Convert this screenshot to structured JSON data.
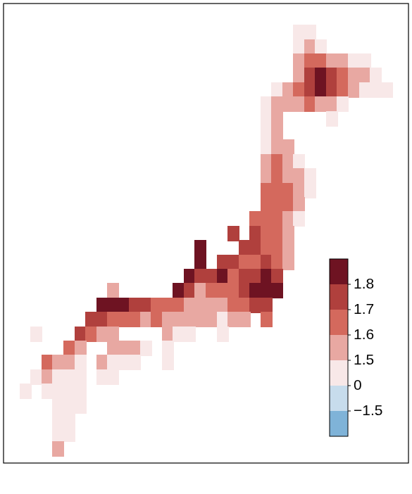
{
  "chart_data": {
    "type": "heatmap",
    "xlim": [
      128,
      146.5
    ],
    "ylim": [
      30,
      46
    ],
    "tick_labels": false,
    "grid": false,
    "cells": [
      [
        141.5,
        45.0,
        1.4
      ],
      [
        142.0,
        45.0,
        1.4
      ],
      [
        141.5,
        44.5,
        1.45
      ],
      [
        142.0,
        44.5,
        1.55
      ],
      [
        142.5,
        44.5,
        1.45
      ],
      [
        141.5,
        44.0,
        1.5
      ],
      [
        142.0,
        44.0,
        1.6
      ],
      [
        142.5,
        44.0,
        1.6
      ],
      [
        143.0,
        44.0,
        1.55
      ],
      [
        143.5,
        44.0,
        1.5
      ],
      [
        144.0,
        44.0,
        1.45
      ],
      [
        144.5,
        44.0,
        1.4
      ],
      [
        141.5,
        43.5,
        1.55
      ],
      [
        142.0,
        43.5,
        1.7
      ],
      [
        142.5,
        43.5,
        1.85
      ],
      [
        143.0,
        43.5,
        1.75
      ],
      [
        143.5,
        43.5,
        1.65
      ],
      [
        144.0,
        43.5,
        1.55
      ],
      [
        144.5,
        43.5,
        1.5
      ],
      [
        145.0,
        43.5,
        1.4
      ],
      [
        140.5,
        43.0,
        1.45
      ],
      [
        141.0,
        43.0,
        1.55
      ],
      [
        141.5,
        43.0,
        1.6
      ],
      [
        142.0,
        43.0,
        1.75
      ],
      [
        142.5,
        43.0,
        1.8
      ],
      [
        143.0,
        43.0,
        1.7
      ],
      [
        143.5,
        43.0,
        1.6
      ],
      [
        144.0,
        43.0,
        1.5
      ],
      [
        144.5,
        43.0,
        1.45
      ],
      [
        145.0,
        43.0,
        1.4
      ],
      [
        145.5,
        43.0,
        1.4
      ],
      [
        140.0,
        42.5,
        1.45
      ],
      [
        140.5,
        42.5,
        1.5
      ],
      [
        141.0,
        42.5,
        1.55
      ],
      [
        141.5,
        42.5,
        1.5
      ],
      [
        142.0,
        42.5,
        1.6
      ],
      [
        142.5,
        42.5,
        1.55
      ],
      [
        143.0,
        42.5,
        1.5
      ],
      [
        143.5,
        42.5,
        1.45
      ],
      [
        140.0,
        42.0,
        1.45
      ],
      [
        140.5,
        42.0,
        1.5
      ],
      [
        143.0,
        42.0,
        1.4
      ],
      [
        140.0,
        41.5,
        1.45
      ],
      [
        140.5,
        41.5,
        1.5
      ],
      [
        140.0,
        41.0,
        1.45
      ],
      [
        140.5,
        41.0,
        1.55
      ],
      [
        141.0,
        41.0,
        1.5
      ],
      [
        140.0,
        40.5,
        1.5
      ],
      [
        140.5,
        40.5,
        1.6
      ],
      [
        141.0,
        40.5,
        1.55
      ],
      [
        141.5,
        40.5,
        1.45
      ],
      [
        140.0,
        40.0,
        1.55
      ],
      [
        140.5,
        40.0,
        1.6
      ],
      [
        141.0,
        40.0,
        1.55
      ],
      [
        141.5,
        40.0,
        1.5
      ],
      [
        142.0,
        40.0,
        1.45
      ],
      [
        140.0,
        39.5,
        1.6
      ],
      [
        140.5,
        39.5,
        1.65
      ],
      [
        141.0,
        39.5,
        1.6
      ],
      [
        141.5,
        39.5,
        1.5
      ],
      [
        142.0,
        39.5,
        1.45
      ],
      [
        140.0,
        39.0,
        1.6
      ],
      [
        140.5,
        39.0,
        1.65
      ],
      [
        141.0,
        39.0,
        1.6
      ],
      [
        141.5,
        39.0,
        1.5
      ],
      [
        139.5,
        38.5,
        1.65
      ],
      [
        140.0,
        38.5,
        1.6
      ],
      [
        140.5,
        38.5,
        1.65
      ],
      [
        141.0,
        38.5,
        1.55
      ],
      [
        141.5,
        38.5,
        1.45
      ],
      [
        138.5,
        38.0,
        1.7
      ],
      [
        139.5,
        38.0,
        1.7
      ],
      [
        140.0,
        38.0,
        1.65
      ],
      [
        140.5,
        38.0,
        1.6
      ],
      [
        141.0,
        38.0,
        1.55
      ],
      [
        137.0,
        37.5,
        1.8
      ],
      [
        139.0,
        37.5,
        1.75
      ],
      [
        139.5,
        37.5,
        1.7
      ],
      [
        140.0,
        37.5,
        1.6
      ],
      [
        140.5,
        37.5,
        1.65
      ],
      [
        141.0,
        37.5,
        1.55
      ],
      [
        137.0,
        37.0,
        1.85
      ],
      [
        138.0,
        37.0,
        1.75
      ],
      [
        138.5,
        37.0,
        1.7
      ],
      [
        139.0,
        37.0,
        1.65
      ],
      [
        139.5,
        37.0,
        1.6
      ],
      [
        140.0,
        37.0,
        1.7
      ],
      [
        140.5,
        37.0,
        1.65
      ],
      [
        141.0,
        37.0,
        1.55
      ],
      [
        136.5,
        36.5,
        1.85
      ],
      [
        137.0,
        36.5,
        1.75
      ],
      [
        137.5,
        36.5,
        1.7
      ],
      [
        138.0,
        36.5,
        1.8
      ],
      [
        138.5,
        36.5,
        1.65
      ],
      [
        139.0,
        36.5,
        1.7
      ],
      [
        139.5,
        36.5,
        1.75
      ],
      [
        140.0,
        36.5,
        1.8
      ],
      [
        140.5,
        36.5,
        1.75
      ],
      [
        133.0,
        36.0,
        1.55
      ],
      [
        136.0,
        36.0,
        1.8
      ],
      [
        136.5,
        36.0,
        1.7
      ],
      [
        137.0,
        36.0,
        1.55
      ],
      [
        137.5,
        36.0,
        1.6
      ],
      [
        138.0,
        36.0,
        1.65
      ],
      [
        138.5,
        36.0,
        1.6
      ],
      [
        139.0,
        36.0,
        1.75
      ],
      [
        139.5,
        36.0,
        1.8
      ],
      [
        140.0,
        36.0,
        1.85
      ],
      [
        140.5,
        36.0,
        1.8
      ],
      [
        132.5,
        35.5,
        1.8
      ],
      [
        133.0,
        35.5,
        1.85
      ],
      [
        133.5,
        35.5,
        1.8
      ],
      [
        134.0,
        35.5,
        1.75
      ],
      [
        134.5,
        35.5,
        1.7
      ],
      [
        135.0,
        35.5,
        1.65
      ],
      [
        135.5,
        35.5,
        1.65
      ],
      [
        136.0,
        35.5,
        1.6
      ],
      [
        136.5,
        35.5,
        1.55
      ],
      [
        137.0,
        35.5,
        1.55
      ],
      [
        137.5,
        35.5,
        1.5
      ],
      [
        138.0,
        35.5,
        1.55
      ],
      [
        138.5,
        35.5,
        1.6
      ],
      [
        139.0,
        35.5,
        1.65
      ],
      [
        139.5,
        35.5,
        1.75
      ],
      [
        140.0,
        35.5,
        1.7
      ],
      [
        132.0,
        35.0,
        1.75
      ],
      [
        132.5,
        35.0,
        1.7
      ],
      [
        133.0,
        35.0,
        1.65
      ],
      [
        133.5,
        35.0,
        1.6
      ],
      [
        134.0,
        35.0,
        1.6
      ],
      [
        134.5,
        35.0,
        1.55
      ],
      [
        135.0,
        35.0,
        1.6
      ],
      [
        135.5,
        35.0,
        1.55
      ],
      [
        136.0,
        35.0,
        1.5
      ],
      [
        136.5,
        35.0,
        1.5
      ],
      [
        137.0,
        35.0,
        1.55
      ],
      [
        137.5,
        35.0,
        1.5
      ],
      [
        138.0,
        35.0,
        1.45
      ],
      [
        138.5,
        35.0,
        1.5
      ],
      [
        139.0,
        35.0,
        1.55
      ],
      [
        140.0,
        35.0,
        1.6
      ],
      [
        129.5,
        34.5,
        1.45
      ],
      [
        131.5,
        34.5,
        1.7
      ],
      [
        132.0,
        34.5,
        1.6
      ],
      [
        132.5,
        34.5,
        1.55
      ],
      [
        133.0,
        34.5,
        1.5
      ],
      [
        135.5,
        34.5,
        1.5
      ],
      [
        136.0,
        34.5,
        1.45
      ],
      [
        136.5,
        34.5,
        1.45
      ],
      [
        138.0,
        34.5,
        1.45
      ],
      [
        131.0,
        34.0,
        1.65
      ],
      [
        131.5,
        34.0,
        1.55
      ],
      [
        133.0,
        34.0,
        1.55
      ],
      [
        133.5,
        34.0,
        1.5
      ],
      [
        134.0,
        34.0,
        1.55
      ],
      [
        134.5,
        34.0,
        1.45
      ],
      [
        135.5,
        34.0,
        1.4
      ],
      [
        130.0,
        33.5,
        1.6
      ],
      [
        130.5,
        33.5,
        1.55
      ],
      [
        131.0,
        33.5,
        1.5
      ],
      [
        131.5,
        33.5,
        1.45
      ],
      [
        132.5,
        33.5,
        1.5
      ],
      [
        133.0,
        33.5,
        1.45
      ],
      [
        133.5,
        33.5,
        1.4
      ],
      [
        134.0,
        33.5,
        1.4
      ],
      [
        135.5,
        33.5,
        1.35
      ],
      [
        129.5,
        33.0,
        1.45
      ],
      [
        130.0,
        33.0,
        1.5
      ],
      [
        130.5,
        33.0,
        1.45
      ],
      [
        131.0,
        33.0,
        1.4
      ],
      [
        131.5,
        33.0,
        1.45
      ],
      [
        132.5,
        33.0,
        1.4
      ],
      [
        133.0,
        33.0,
        1.35
      ],
      [
        129.0,
        32.5,
        1.4
      ],
      [
        130.0,
        32.5,
        1.45
      ],
      [
        130.5,
        32.5,
        1.4
      ],
      [
        131.0,
        32.5,
        1.35
      ],
      [
        131.5,
        32.5,
        1.4
      ],
      [
        130.5,
        32.0,
        1.4
      ],
      [
        131.0,
        32.0,
        1.35
      ],
      [
        131.5,
        32.0,
        1.4
      ],
      [
        130.5,
        31.5,
        1.35
      ],
      [
        131.0,
        31.5,
        1.4
      ],
      [
        130.5,
        31.0,
        1.4
      ],
      [
        131.0,
        31.0,
        1.35
      ],
      [
        130.5,
        30.5,
        1.5
      ]
    ],
    "colorbar": {
      "ticks": [
        {
          "value": -1.5,
          "label": "−1.5"
        },
        0,
        1.5,
        1.6,
        1.7,
        1.8
      ],
      "colors": [
        "#7fb3d8",
        "#c7dcec",
        "#f8e8e8",
        "#e8a8a2",
        "#d4695d",
        "#b0403d",
        "#6e1322"
      ]
    }
  }
}
